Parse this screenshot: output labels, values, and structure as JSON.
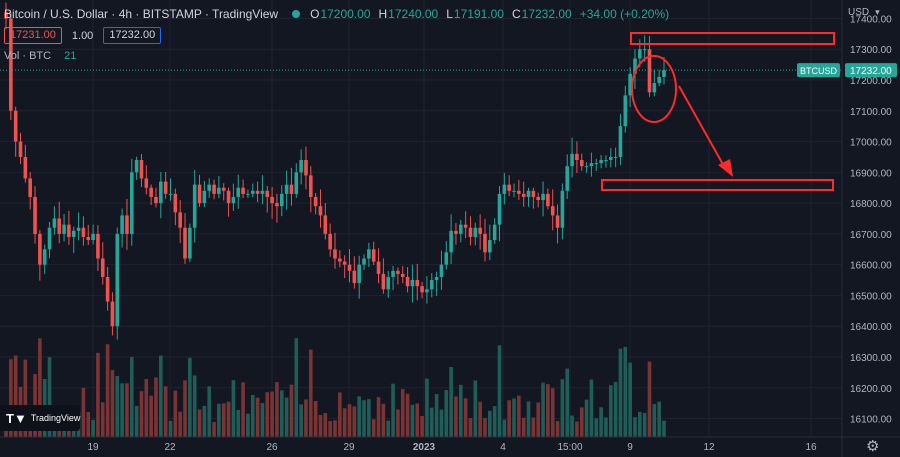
{
  "legend": {
    "title": "Bitcoin / U.S. Dollar · 4h · BITSTAMP · TradingView",
    "o_label": "O",
    "o_value": "17200.00",
    "h_label": "H",
    "h_value": "17240.00",
    "l_label": "L",
    "l_value": "17191.00",
    "c_label": "C",
    "c_value": "17232.00",
    "change": "+34.00 (+0.20%)"
  },
  "trade": {
    "sell": "17231.00",
    "spread": "1.00",
    "buy": "17232.00"
  },
  "volume": {
    "label": "Vol · BTC",
    "value": "21"
  },
  "logo": {
    "text": "TradingView"
  },
  "currency": {
    "label": "USD"
  },
  "settings_icon": "gear-icon",
  "price_axis": {
    "ticks": [
      "17400.00",
      "17300.00",
      "17200.00",
      "17100.00",
      "17000.00",
      "16900.00",
      "16800.00",
      "16700.00",
      "16600.00",
      "16500.00",
      "16400.00",
      "16300.00",
      "16200.00",
      "16100.00"
    ],
    "symbol_tag": "BTCUSD",
    "last_price": "17232.00"
  },
  "time_axis": {
    "labels": [
      {
        "text": "19",
        "bold": false
      },
      {
        "text": "22",
        "bold": false
      },
      {
        "text": "26",
        "bold": false
      },
      {
        "text": "29",
        "bold": false
      },
      {
        "text": "2023",
        "bold": true
      },
      {
        "text": "4",
        "bold": false
      },
      {
        "text": "15:00",
        "bold": false
      },
      {
        "text": "9",
        "bold": false
      },
      {
        "text": "12",
        "bold": false
      },
      {
        "text": "16",
        "bold": false
      }
    ]
  },
  "colors": {
    "up": "#26a69a",
    "down": "#ef5350",
    "annotation": "#ff2a2a",
    "background": "#131722"
  },
  "chart_data": {
    "type": "candlestick",
    "symbol": "BTCUSD",
    "interval": "4h",
    "ylim": [
      16040,
      17460
    ],
    "current_price": 17232,
    "x_labels": [
      "19",
      "22",
      "26",
      "29",
      "2023",
      "4",
      "15:00",
      "9",
      "12",
      "16"
    ],
    "series": [
      {
        "name": "price",
        "values": [
          17400,
          17100,
          17000,
          16950,
          16880,
          16820,
          16700,
          16600,
          16650,
          16720,
          16750,
          16700,
          16730,
          16690,
          16710,
          16720,
          16690,
          16680,
          16700,
          16620,
          16560,
          16480,
          16400,
          16700,
          16760,
          16700,
          16900,
          16940,
          16880,
          16850,
          16820,
          16800,
          16870,
          16830,
          16830,
          16770,
          16720,
          16620,
          16720,
          16860,
          16800,
          16840,
          16860,
          16830,
          16850,
          16840,
          16800,
          16820,
          16850,
          16830,
          16830,
          16840,
          16830,
          16840,
          16820,
          16800,
          16790,
          16830,
          16860,
          16830,
          16900,
          16940,
          16890,
          16820,
          16790,
          16760,
          16700,
          16650,
          16620,
          16610,
          16600,
          16580,
          16540,
          16600,
          16620,
          16650,
          16610,
          16570,
          16520,
          16560,
          16580,
          16570,
          16560,
          16530,
          16550,
          16530,
          16510,
          16520,
          16550,
          16560,
          16600,
          16640,
          16710,
          16700,
          16730,
          16720,
          16690,
          16720,
          16700,
          16640,
          16680,
          16730,
          16830,
          16860,
          16840,
          16840,
          16830,
          16820,
          16840,
          16820,
          16810,
          16830,
          16790,
          16760,
          16720,
          16840,
          16920,
          16960,
          16940,
          16920,
          16920,
          16930,
          16930,
          16940,
          16940,
          16950,
          16950,
          17050,
          17150,
          17220,
          17270,
          17300,
          17300,
          17160,
          17190,
          17210,
          17232
        ]
      }
    ],
    "volume_series": [
      {
        "name": "Vol · BTC",
        "last": 21
      }
    ],
    "annotations": [
      {
        "type": "rectangle",
        "price_range": [
          17380,
          17400
        ],
        "label": ""
      },
      {
        "type": "rectangle",
        "price_range": [
          16890,
          16910
        ],
        "label": ""
      },
      {
        "type": "ellipse",
        "label": ""
      },
      {
        "type": "arrow",
        "direction": "down",
        "label": ""
      }
    ]
  }
}
